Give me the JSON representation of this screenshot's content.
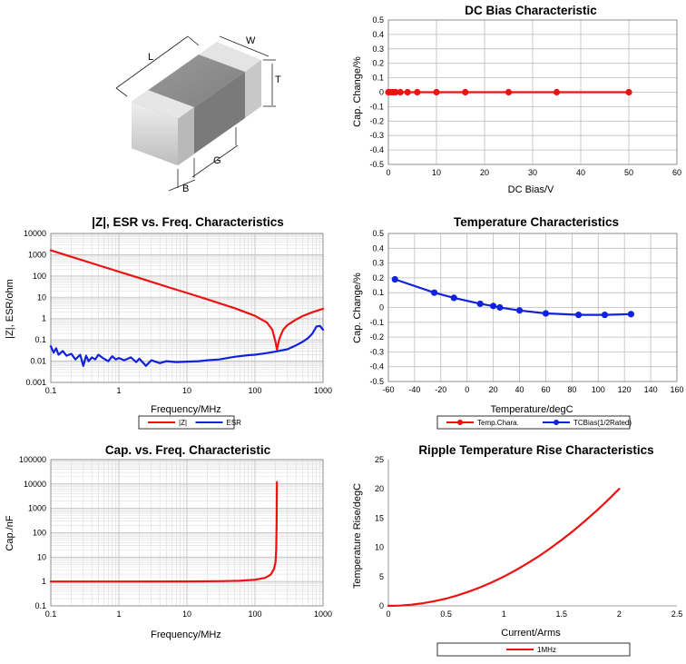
{
  "chart_data": [
    {
      "id": "dcbias",
      "type": "line",
      "title": "DC Bias Characteristic",
      "xlabel": "DC Bias/V",
      "ylabel": "Cap. Change/%",
      "xlim": [
        0,
        60
      ],
      "ylim": [
        -0.5,
        0.5
      ],
      "xticks": [
        0,
        10,
        20,
        30,
        40,
        50,
        60
      ],
      "yticks": [
        -0.5,
        -0.4,
        -0.3,
        -0.2,
        -0.1,
        0,
        0.1,
        0.2,
        0.3,
        0.4,
        0.5
      ],
      "xscale": "linear",
      "yscale": "linear",
      "grid": true,
      "series": [
        {
          "color": "#ee1111",
          "markers": true,
          "x": [
            0,
            0.5,
            1,
            1.5,
            2.5,
            4,
            6,
            10,
            16,
            25,
            35,
            50
          ],
          "y": [
            0,
            0,
            0,
            0,
            0,
            0,
            0,
            0,
            0,
            0,
            0,
            0
          ]
        }
      ]
    },
    {
      "id": "impedance",
      "type": "line",
      "title": "|Z|, ESR vs. Freq. Characteristics",
      "xlabel": "Frequency/MHz",
      "ylabel": "|Z|, ESR/ohm",
      "xlim": [
        0.1,
        1000
      ],
      "ylim": [
        0.001,
        10000
      ],
      "xticks": [
        0.1,
        1,
        10,
        100,
        1000
      ],
      "yticks": [
        0.001,
        0.01,
        0.1,
        1,
        10,
        100,
        1000,
        10000
      ],
      "xscale": "log",
      "yscale": "log",
      "grid": true,
      "legend": "bottom",
      "series": [
        {
          "name": "|Z|",
          "color": "#ee1111",
          "x": [
            0.1,
            0.2,
            0.5,
            1,
            2,
            5,
            10,
            20,
            50,
            100,
            150,
            180,
            200,
            210,
            230,
            260,
            300,
            400,
            500,
            700,
            1000
          ],
          "y": [
            1600,
            800,
            320,
            160,
            80,
            32,
            16,
            8,
            3.1,
            1.35,
            0.65,
            0.3,
            0.08,
            0.035,
            0.12,
            0.3,
            0.5,
            0.9,
            1.3,
            2.0,
            2.9
          ]
        },
        {
          "name": "ESR",
          "color": "#1122dd",
          "x": [
            0.1,
            0.11,
            0.12,
            0.13,
            0.15,
            0.17,
            0.2,
            0.23,
            0.27,
            0.3,
            0.33,
            0.36,
            0.4,
            0.45,
            0.5,
            0.6,
            0.7,
            0.8,
            0.9,
            1.0,
            1.2,
            1.5,
            1.8,
            2.0,
            2.5,
            3,
            4,
            5,
            7,
            10,
            15,
            20,
            30,
            50,
            80,
            100,
            150,
            200,
            300,
            400,
            500,
            600,
            700,
            800,
            900,
            1000
          ],
          "y": [
            0.05,
            0.025,
            0.04,
            0.02,
            0.03,
            0.018,
            0.022,
            0.012,
            0.02,
            0.006,
            0.018,
            0.01,
            0.015,
            0.012,
            0.02,
            0.013,
            0.01,
            0.017,
            0.012,
            0.014,
            0.011,
            0.015,
            0.009,
            0.013,
            0.006,
            0.011,
            0.008,
            0.01,
            0.009,
            0.0095,
            0.01,
            0.011,
            0.012,
            0.016,
            0.019,
            0.02,
            0.024,
            0.028,
            0.036,
            0.055,
            0.08,
            0.12,
            0.2,
            0.42,
            0.45,
            0.3
          ]
        }
      ]
    },
    {
      "id": "temperature",
      "type": "line",
      "title": "Temperature Characteristics",
      "xlabel": "Temperature/degC",
      "ylabel": "Cap. Change/%",
      "xlim": [
        -60,
        160
      ],
      "ylim": [
        -0.5,
        0.5
      ],
      "xticks": [
        -60,
        -40,
        -20,
        0,
        20,
        40,
        60,
        80,
        100,
        120,
        140,
        160
      ],
      "yticks": [
        -0.5,
        -0.4,
        -0.3,
        -0.2,
        -0.1,
        0,
        0.1,
        0.2,
        0.3,
        0.4,
        0.5
      ],
      "xscale": "linear",
      "yscale": "linear",
      "grid": true,
      "legend": "bottom",
      "series": [
        {
          "name": "Temp.Chara.",
          "color": "#ee1111",
          "markers": true,
          "x": [],
          "y": []
        },
        {
          "name": "TCBias(1/2Rated)",
          "color": "#1122dd",
          "markers": true,
          "x": [
            -55,
            -25,
            -10,
            10,
            20,
            25,
            40,
            60,
            85,
            105,
            125
          ],
          "y": [
            0.19,
            0.1,
            0.065,
            0.025,
            0.01,
            0.0,
            -0.02,
            -0.04,
            -0.05,
            -0.05,
            -0.045
          ]
        }
      ]
    },
    {
      "id": "capfreq",
      "type": "line",
      "title": "Cap. vs. Freq. Characteristic",
      "xlabel": "Frequency/MHz",
      "ylabel": "Cap./nF",
      "xlim": [
        0.1,
        1000
      ],
      "ylim": [
        0.1,
        100000
      ],
      "xticks": [
        0.1,
        1,
        10,
        100,
        1000
      ],
      "yticks": [
        0.1,
        1,
        10,
        100,
        1000,
        10000,
        100000
      ],
      "xscale": "log",
      "yscale": "log",
      "grid": true,
      "series": [
        {
          "color": "#ee1111",
          "x": [
            0.1,
            1,
            10,
            30,
            60,
            100,
            140,
            170,
            190,
            200,
            205,
            208,
            210
          ],
          "y": [
            1,
            1,
            1.01,
            1.03,
            1.07,
            1.18,
            1.4,
            1.9,
            3.2,
            6,
            20,
            300,
            12000
          ]
        }
      ]
    },
    {
      "id": "ripple",
      "type": "line",
      "title": "Ripple Temperature Rise Characteristics",
      "xlabel": "Current/Arms",
      "ylabel": "Temperature Rise/degC",
      "xlim": [
        0,
        2.5
      ],
      "ylim": [
        0,
        25
      ],
      "xticks": [
        0,
        0.5,
        1,
        1.5,
        2,
        2.5
      ],
      "yticks": [
        0,
        5,
        10,
        15,
        20,
        25
      ],
      "xscale": "linear",
      "yscale": "linear",
      "grid": false,
      "legend": "bottom",
      "series": [
        {
          "name": "1MHz",
          "color": "#ee1111",
          "x": [
            0,
            0.1,
            0.2,
            0.3,
            0.4,
            0.5,
            0.6,
            0.7,
            0.8,
            0.9,
            1.0,
            1.1,
            1.2,
            1.3,
            1.4,
            1.5,
            1.6,
            1.7,
            1.8,
            1.9,
            2.0
          ],
          "y": [
            0,
            0.05,
            0.2,
            0.45,
            0.8,
            1.25,
            1.8,
            2.45,
            3.2,
            4.05,
            5.0,
            6.05,
            7.2,
            8.45,
            9.8,
            11.25,
            12.8,
            14.45,
            16.2,
            18.05,
            20.0
          ]
        }
      ]
    }
  ],
  "component_drawing": {
    "dim_labels": {
      "length": "L",
      "width": "W",
      "thickness": "T",
      "gap": "G",
      "band": "B"
    },
    "body_color": "#8a8a8a",
    "terminal_color": "#d9d9d9"
  }
}
